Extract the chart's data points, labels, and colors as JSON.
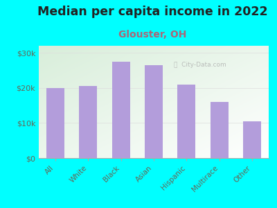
{
  "title": "Median per capita income in 2022",
  "subtitle": "Glouster, OH",
  "categories": [
    "All",
    "White",
    "Black",
    "Asian",
    "Hispanic",
    "Multirace",
    "Other"
  ],
  "values": [
    20000,
    20500,
    27500,
    26500,
    21000,
    16000,
    10500
  ],
  "bar_color": "#b39ddb",
  "title_fontsize": 12.5,
  "title_color": "#222222",
  "subtitle_fontsize": 10,
  "subtitle_color": "#aa6677",
  "background_color": "#00ffff",
  "plot_bg_topleft": "#d8eeda",
  "plot_bg_white": "#ffffff",
  "tick_label_color": "#666655",
  "ylim": [
    0,
    32000
  ],
  "yticks": [
    0,
    10000,
    20000,
    30000
  ],
  "ytick_labels": [
    "$0",
    "$10k",
    "$20k",
    "$30k"
  ],
  "watermark": "ⓘ  City-Data.com"
}
